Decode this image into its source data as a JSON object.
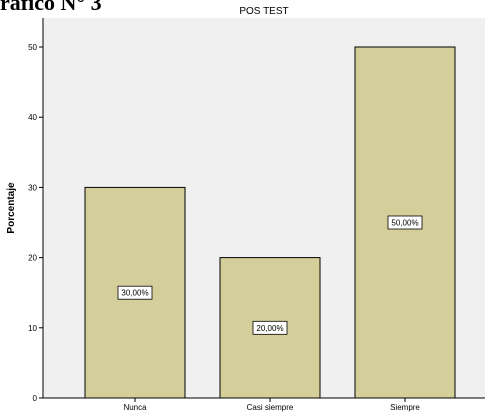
{
  "page": {
    "heading": "ráfico N° 3"
  },
  "chart_data": {
    "type": "bar",
    "title": "POS TEST",
    "xlabel": "",
    "ylabel": "Porcentaje",
    "categories": [
      "Nunca",
      "Casi siempre",
      "Siempre"
    ],
    "values": [
      30,
      20,
      50
    ],
    "data_labels": [
      "30,00%",
      "20,00%",
      "50,00%"
    ],
    "ylim": [
      0,
      50
    ],
    "yticks": [
      0,
      10,
      20,
      30,
      40,
      50
    ],
    "grid": false,
    "legend": "none",
    "colors": {
      "bar_fill": "#D4CF9A",
      "bar_stroke": "#000000",
      "plot_background": "#F0F0F0",
      "axis": "#000000"
    }
  }
}
